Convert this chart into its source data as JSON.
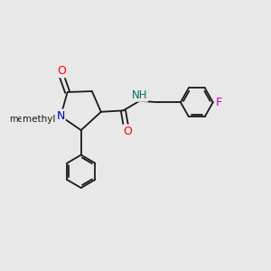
{
  "background_color": "#e8e8e8",
  "bond_color": "#1a1a1a",
  "atom_colors": {
    "O": "#ff0000",
    "N": "#0000cc",
    "NH": "#007070",
    "F": "#cc00cc",
    "C": "#1a1a1a"
  },
  "figsize": [
    3.0,
    3.0
  ],
  "dpi": 100,
  "xlim": [
    0,
    10
  ],
  "ylim": [
    0,
    10
  ]
}
